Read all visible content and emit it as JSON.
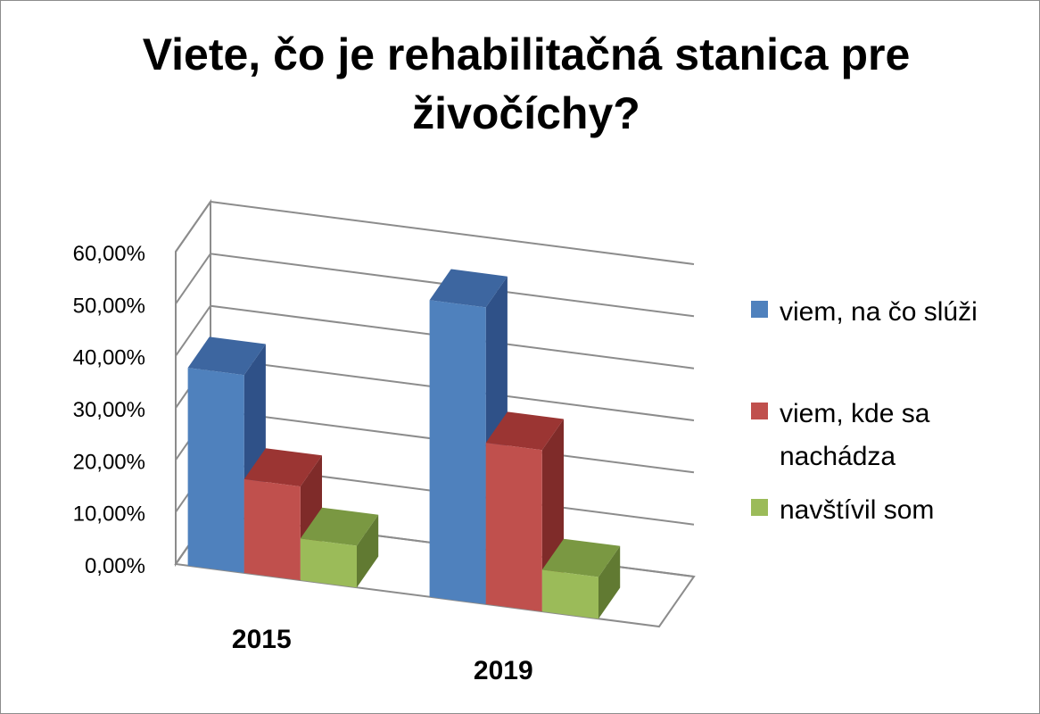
{
  "chart_data": {
    "type": "bar",
    "title": "Viete, čo je rehabilitačná stanica pre živočíchy?",
    "title_lines": [
      "Viete, čo je rehabilitačná stanica pre",
      "živočíchy?"
    ],
    "categories": [
      "2015",
      "2019"
    ],
    "series": [
      {
        "name": "viem, na čo slúži",
        "values": [
          0.38,
          0.57
        ],
        "color": "#4f81bd",
        "side": "#2f5188",
        "top": "#3d66a0"
      },
      {
        "name": "viem, kde sa nachádza",
        "values": [
          0.18,
          0.31
        ],
        "color": "#c0504d",
        "side": "#7f2b29",
        "top": "#9b3533"
      },
      {
        "name": "navštívil som",
        "values": [
          0.08,
          0.08
        ],
        "color": "#9bbb59",
        "side": "#617a32",
        "top": "#7a9842"
      }
    ],
    "ylim": [
      0,
      0.6
    ],
    "yticks": [
      "0,00%",
      "10,00%",
      "20,00%",
      "30,00%",
      "40,00%",
      "50,00%",
      "60,00%"
    ],
    "xlabel": "",
    "ylabel": "",
    "grid": true,
    "legend": "right",
    "style": "3d-clustered-column"
  }
}
